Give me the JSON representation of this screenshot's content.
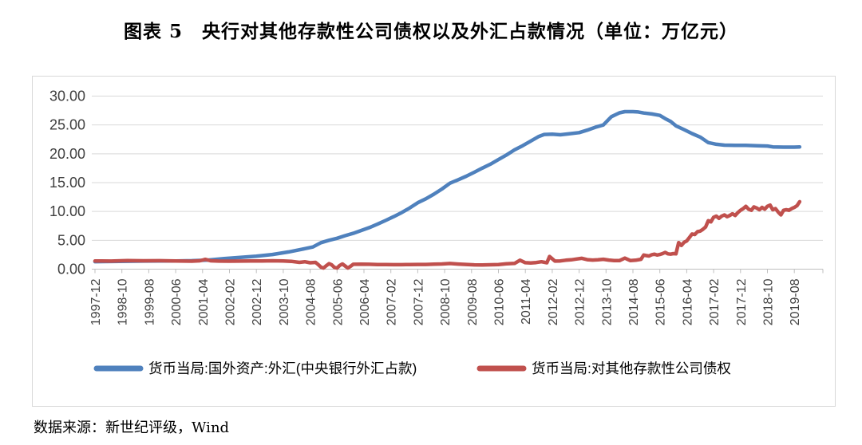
{
  "title": "图表 5　央行对其他存款性公司债权以及外汇占款情况（单位：万亿元）",
  "source": "数据来源：新世纪评级，Wind",
  "colors": {
    "series_foreign_exchange": "#4F81BD",
    "series_claims": "#C0504D",
    "gridline": "#d9d9d9",
    "axis_line": "#bfbfbf",
    "tick_text": "#404040",
    "chart_border": "#d9d9d9"
  },
  "chart_data": {
    "type": "line",
    "title": "图表 5　央行对其他存款性公司债权以及外汇占款情况（单位：万亿元）",
    "unit": "万亿元",
    "ylim": [
      0,
      30
    ],
    "ytick_step": 5,
    "y_tick_labels": [
      "0.00",
      "5.00",
      "10.00",
      "15.00",
      "20.00",
      "25.00",
      "30.00"
    ],
    "grid": "horizontal",
    "legend_position": "bottom",
    "x_tick_interval_months": 10,
    "x_first_month": "1997-12",
    "x_last_month": "2019-10",
    "x_tick_labels": [
      "1997-12",
      "1998-10",
      "1999-08",
      "2000-06",
      "2001-04",
      "2002-02",
      "2002-12",
      "2003-10",
      "2004-08",
      "2005-06",
      "2006-04",
      "2007-02",
      "2007-12",
      "2008-10",
      "2009-08",
      "2010-06",
      "2011-04",
      "2012-02",
      "2012-12",
      "2013-10",
      "2014-08",
      "2015-06",
      "2016-04",
      "2017-02",
      "2017-12",
      "2018-10",
      "2019-08"
    ],
    "x_unit_note": "series points are [months_since_1997-12, value_in_trillion_yuan]",
    "series": [
      {
        "name": "货币当局:国外资产:外汇(中央银行外汇占款)",
        "color": "#4F81BD",
        "points": [
          [
            0,
            1.3
          ],
          [
            6,
            1.33
          ],
          [
            12,
            1.37
          ],
          [
            18,
            1.39
          ],
          [
            24,
            1.41
          ],
          [
            30,
            1.43
          ],
          [
            36,
            1.46
          ],
          [
            42,
            1.58
          ],
          [
            48,
            1.84
          ],
          [
            54,
            2.05
          ],
          [
            60,
            2.25
          ],
          [
            66,
            2.55
          ],
          [
            72,
            2.98
          ],
          [
            78,
            3.55
          ],
          [
            81,
            3.85
          ],
          [
            84,
            4.59
          ],
          [
            87,
            5.0
          ],
          [
            90,
            5.35
          ],
          [
            93,
            5.8
          ],
          [
            96,
            6.21
          ],
          [
            99,
            6.7
          ],
          [
            102,
            7.2
          ],
          [
            105,
            7.8
          ],
          [
            108,
            8.44
          ],
          [
            111,
            9.1
          ],
          [
            114,
            9.8
          ],
          [
            117,
            10.6
          ],
          [
            120,
            11.52
          ],
          [
            123,
            12.2
          ],
          [
            126,
            13.0
          ],
          [
            129,
            13.9
          ],
          [
            132,
            14.91
          ],
          [
            135,
            15.5
          ],
          [
            138,
            16.1
          ],
          [
            141,
            16.8
          ],
          [
            144,
            17.52
          ],
          [
            147,
            18.2
          ],
          [
            150,
            19.0
          ],
          [
            153,
            19.8
          ],
          [
            156,
            20.68
          ],
          [
            159,
            21.4
          ],
          [
            162,
            22.2
          ],
          [
            165,
            23.0
          ],
          [
            167,
            23.35
          ],
          [
            170,
            23.4
          ],
          [
            173,
            23.3
          ],
          [
            176,
            23.45
          ],
          [
            180,
            23.67
          ],
          [
            183,
            24.1
          ],
          [
            186,
            24.6
          ],
          [
            189,
            25.0
          ],
          [
            192,
            26.43
          ],
          [
            195,
            27.1
          ],
          [
            197,
            27.3
          ],
          [
            200,
            27.3
          ],
          [
            202,
            27.25
          ],
          [
            204,
            27.07
          ],
          [
            207,
            26.9
          ],
          [
            210,
            26.65
          ],
          [
            212,
            26.1
          ],
          [
            214,
            25.6
          ],
          [
            216,
            24.85
          ],
          [
            219,
            24.2
          ],
          [
            222,
            23.5
          ],
          [
            225,
            22.9
          ],
          [
            228,
            21.94
          ],
          [
            231,
            21.65
          ],
          [
            234,
            21.5
          ],
          [
            238,
            21.45
          ],
          [
            242,
            21.45
          ],
          [
            246,
            21.4
          ],
          [
            250,
            21.35
          ],
          [
            252,
            21.2
          ],
          [
            256,
            21.15
          ],
          [
            260,
            21.15
          ],
          [
            262,
            21.2
          ]
        ]
      },
      {
        "name": "货币当局:对其他存款性公司债权",
        "color": "#C0504D",
        "points": [
          [
            0,
            1.42
          ],
          [
            6,
            1.4
          ],
          [
            12,
            1.48
          ],
          [
            18,
            1.45
          ],
          [
            24,
            1.46
          ],
          [
            30,
            1.42
          ],
          [
            36,
            1.38
          ],
          [
            39,
            1.45
          ],
          [
            41,
            1.7
          ],
          [
            43,
            1.45
          ],
          [
            46,
            1.4
          ],
          [
            50,
            1.38
          ],
          [
            54,
            1.4
          ],
          [
            58,
            1.42
          ],
          [
            62,
            1.43
          ],
          [
            66,
            1.45
          ],
          [
            70,
            1.42
          ],
          [
            73,
            1.35
          ],
          [
            76,
            1.18
          ],
          [
            78,
            1.28
          ],
          [
            80,
            1.1
          ],
          [
            82,
            1.18
          ],
          [
            83,
            0.8
          ],
          [
            84,
            0.35
          ],
          [
            85,
            0.2
          ],
          [
            86,
            0.6
          ],
          [
            87,
            0.95
          ],
          [
            88,
            0.75
          ],
          [
            89,
            0.3
          ],
          [
            90,
            0.2
          ],
          [
            91,
            0.65
          ],
          [
            92,
            0.9
          ],
          [
            93,
            0.55
          ],
          [
            94,
            0.2
          ],
          [
            95,
            0.5
          ],
          [
            96,
            0.85
          ],
          [
            99,
            0.87
          ],
          [
            102,
            0.84
          ],
          [
            105,
            0.8
          ],
          [
            108,
            0.8
          ],
          [
            111,
            0.78
          ],
          [
            114,
            0.77
          ],
          [
            117,
            0.8
          ],
          [
            120,
            0.82
          ],
          [
            123,
            0.82
          ],
          [
            126,
            0.86
          ],
          [
            129,
            0.9
          ],
          [
            132,
            0.98
          ],
          [
            135,
            0.88
          ],
          [
            138,
            0.82
          ],
          [
            141,
            0.75
          ],
          [
            144,
            0.72
          ],
          [
            147,
            0.76
          ],
          [
            150,
            0.8
          ],
          [
            153,
            0.92
          ],
          [
            156,
            1.0
          ],
          [
            158,
            1.55
          ],
          [
            160,
            1.12
          ],
          [
            162,
            1.08
          ],
          [
            164,
            1.15
          ],
          [
            166,
            1.28
          ],
          [
            168,
            1.1
          ],
          [
            169,
            2.2
          ],
          [
            170,
            1.8
          ],
          [
            171,
            1.4
          ],
          [
            173,
            1.42
          ],
          [
            175,
            1.55
          ],
          [
            177,
            1.62
          ],
          [
            179,
            1.75
          ],
          [
            181,
            1.88
          ],
          [
            183,
            1.65
          ],
          [
            185,
            1.58
          ],
          [
            187,
            1.62
          ],
          [
            189,
            1.72
          ],
          [
            191,
            1.58
          ],
          [
            193,
            1.5
          ],
          [
            195,
            1.48
          ],
          [
            197,
            1.92
          ],
          [
            198,
            1.7
          ],
          [
            199,
            1.5
          ],
          [
            201,
            1.55
          ],
          [
            203,
            1.72
          ],
          [
            204,
            2.45
          ],
          [
            205,
            2.35
          ],
          [
            206,
            2.28
          ],
          [
            207,
            2.5
          ],
          [
            208,
            2.6
          ],
          [
            209,
            2.45
          ],
          [
            210,
            2.55
          ],
          [
            211,
            2.7
          ],
          [
            212,
            2.9
          ],
          [
            213,
            2.65
          ],
          [
            214,
            2.6
          ],
          [
            215,
            2.7
          ],
          [
            216,
            2.66
          ],
          [
            217,
            4.6
          ],
          [
            218,
            4.1
          ],
          [
            219,
            4.65
          ],
          [
            220,
            4.9
          ],
          [
            221,
            5.5
          ],
          [
            222,
            6.1
          ],
          [
            223,
            6.0
          ],
          [
            224,
            6.5
          ],
          [
            225,
            6.6
          ],
          [
            226,
            6.9
          ],
          [
            227,
            7.3
          ],
          [
            228,
            8.4
          ],
          [
            229,
            8.2
          ],
          [
            230,
            9.0
          ],
          [
            231,
            9.2
          ],
          [
            232,
            8.8
          ],
          [
            233,
            9.2
          ],
          [
            234,
            9.4
          ],
          [
            235,
            9.1
          ],
          [
            236,
            9.3
          ],
          [
            237,
            9.6
          ],
          [
            238,
            9.3
          ],
          [
            239,
            9.8
          ],
          [
            240,
            10.2
          ],
          [
            241,
            10.5
          ],
          [
            242,
            10.9
          ],
          [
            243,
            10.4
          ],
          [
            244,
            10.2
          ],
          [
            245,
            10.8
          ],
          [
            246,
            10.6
          ],
          [
            247,
            10.3
          ],
          [
            248,
            10.7
          ],
          [
            249,
            10.4
          ],
          [
            250,
            10.9
          ],
          [
            251,
            11.1
          ],
          [
            252,
            10.3
          ],
          [
            253,
            10.5
          ],
          [
            254,
            9.9
          ],
          [
            255,
            9.4
          ],
          [
            256,
            10.2
          ],
          [
            257,
            10.3
          ],
          [
            258,
            10.2
          ],
          [
            259,
            10.5
          ],
          [
            260,
            10.7
          ],
          [
            261,
            11.0
          ],
          [
            262,
            11.7
          ]
        ]
      }
    ]
  }
}
